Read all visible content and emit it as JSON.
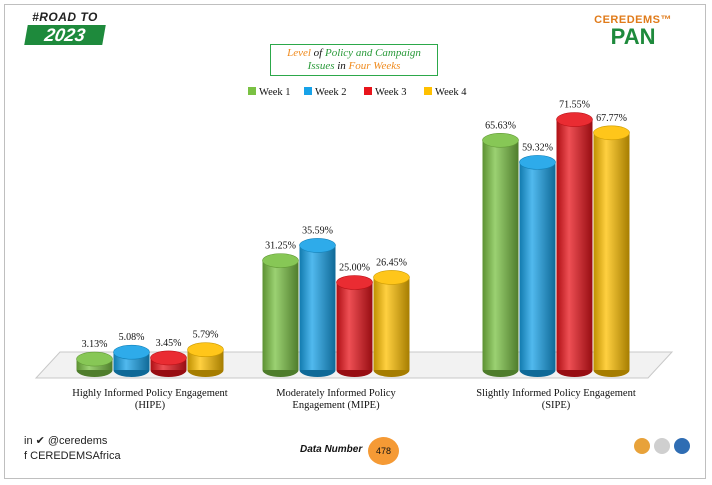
{
  "header": {
    "road_top": "#ROAD TO",
    "road_year": "2023",
    "brand_top": "CEREDEMS™",
    "brand_main": "PAN"
  },
  "title": {
    "w1": "Level",
    "w2": " of ",
    "w3": "Policy and Campaign",
    "w4": "Issues",
    "w5": " in ",
    "w6": "Four Weeks"
  },
  "chart_data": {
    "type": "bar",
    "categories": [
      "Highly Informed Policy Engagement (HIPE)",
      "Moderately Informed Policy Engagement (MIPE)",
      "Slightly Informed Policy Engagement (SIPE)"
    ],
    "category_lines": [
      [
        "Highly Informed Policy Engagement",
        "(HIPE)"
      ],
      [
        "Moderately Informed Policy",
        "Engagement (MIPE)"
      ],
      [
        "Slightly Informed Policy Engagement",
        "(SIPE)"
      ]
    ],
    "series": [
      {
        "name": "Week 1",
        "color": "#7ac143",
        "values": [
          3.13,
          31.25,
          65.63
        ],
        "labels": [
          "3.13%",
          "31.25%",
          "65.63%"
        ]
      },
      {
        "name": "Week 2",
        "color": "#17a2e8",
        "values": [
          5.08,
          35.59,
          59.32
        ],
        "labels": [
          "5.08%",
          "35.59%",
          "59.32%"
        ]
      },
      {
        "name": "Week 3",
        "color": "#e8141b",
        "values": [
          3.45,
          25.0,
          71.55
        ],
        "labels": [
          "3.45%",
          "25.00%",
          "71.55%"
        ]
      },
      {
        "name": "Week 4",
        "color": "#ffc000",
        "values": [
          5.79,
          26.45,
          67.77
        ],
        "labels": [
          "5.79%",
          "26.45%",
          "67.77%"
        ]
      }
    ],
    "legend_position": "top",
    "ylim": [
      0,
      80
    ],
    "grid": false
  },
  "footer": {
    "handle": "@ceredems",
    "page": "CEREDEMSAfrica",
    "data_number_label": "Data Number",
    "data_number_value": "478"
  }
}
